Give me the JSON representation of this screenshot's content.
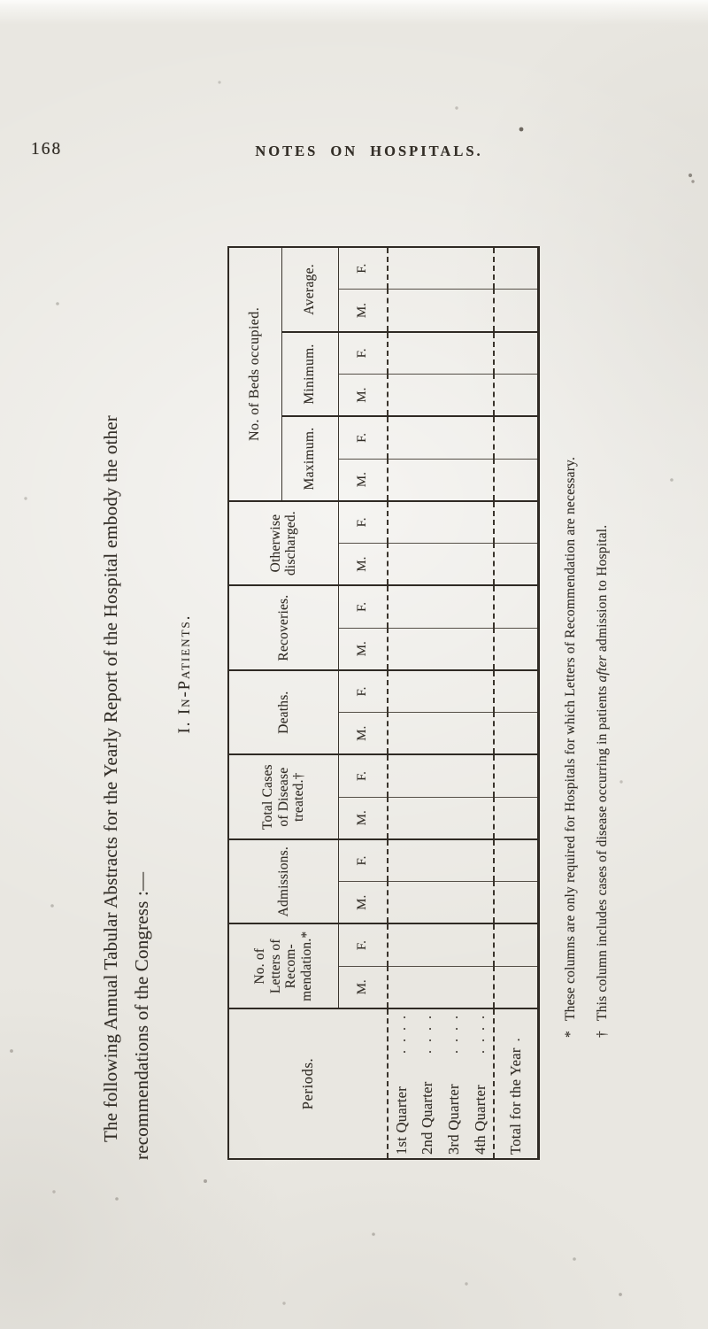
{
  "page": {
    "number": "168",
    "running_title": "NOTES ON HOSPITALS."
  },
  "colors": {
    "paper": "#e9e7e1",
    "ink": "#332e27"
  },
  "intro": {
    "line1": "The following Annual Tabular Abstracts for the Yearly Report of the Hospital embody the other",
    "line2": "recommendations of the Congress :—"
  },
  "section_heading": "I. In-Patients.",
  "table": {
    "periods_header": "Periods.",
    "col_groups": [
      {
        "id": "letters",
        "lines": [
          "No. of",
          "Letters of",
          "Recom-",
          "mendation.*"
        ]
      },
      {
        "id": "admissions",
        "lines": [
          "Admissions."
        ]
      },
      {
        "id": "total_cases",
        "lines": [
          "Total Cases",
          "of Disease",
          "treated.†"
        ]
      },
      {
        "id": "deaths",
        "lines": [
          "Deaths."
        ]
      },
      {
        "id": "recoveries",
        "lines": [
          "Recoveries."
        ]
      },
      {
        "id": "otherwise",
        "lines": [
          "Otherwise",
          "discharged."
        ]
      }
    ],
    "beds_group": {
      "label": "No. of Beds occupied.",
      "subgroups": [
        "Maximum.",
        "Minimum.",
        "Average."
      ]
    },
    "sex": {
      "m": "M.",
      "f": "F."
    },
    "rows": [
      {
        "label": "1st Quarter",
        "leader": ". . . ."
      },
      {
        "label": "2nd Quarter",
        "leader": ". . . ."
      },
      {
        "label": "3rd Quarter",
        "leader": ". . . ."
      },
      {
        "label": "4th Quarter",
        "leader": ". . . ."
      },
      {
        "label": "Total for the Year",
        "leader": "."
      }
    ]
  },
  "footnotes": [
    {
      "marker": "*",
      "pre": "These columns are only required for Hospitals for which Letters of Recommendation are necessary.",
      "italic": "",
      "post": ""
    },
    {
      "marker": "†",
      "pre": "This column includes cases of disease occurring in patients ",
      "italic": "after",
      "post": " admission to Hospital."
    }
  ]
}
